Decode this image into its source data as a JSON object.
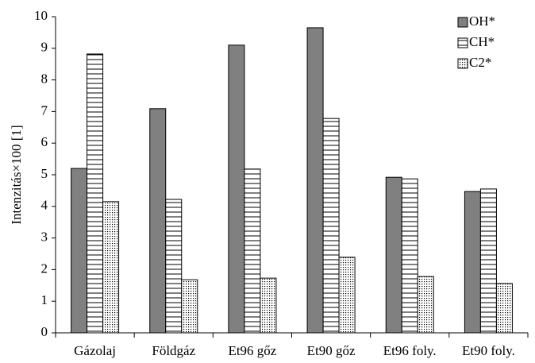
{
  "chart_data": {
    "type": "bar",
    "y_label": "Intenzitás×100 [1]",
    "categories": [
      "Gázolaj",
      "Földgáz",
      "Et96 gőz",
      "Et90 gőz",
      "Et96 foly.",
      "Et90 foly."
    ],
    "series": [
      {
        "name": "OH*",
        "color": "#808080",
        "pattern": "solid",
        "values": [
          5.2,
          7.09,
          9.1,
          9.65,
          4.92,
          4.47
        ]
      },
      {
        "name": "CH*",
        "color": "#ffffff",
        "pattern": "hlines",
        "values": [
          8.82,
          4.22,
          5.18,
          6.78,
          4.87,
          4.55
        ]
      },
      {
        "name": "C2*",
        "color": "#ffffff",
        "pattern": "dots",
        "values": [
          4.15,
          1.68,
          1.73,
          2.39,
          1.78,
          1.56
        ]
      }
    ],
    "ylim": [
      0,
      10
    ],
    "yticks": [
      0,
      1,
      2,
      3,
      4,
      5,
      6,
      7,
      8,
      9,
      10
    ],
    "legend": "upper right"
  }
}
